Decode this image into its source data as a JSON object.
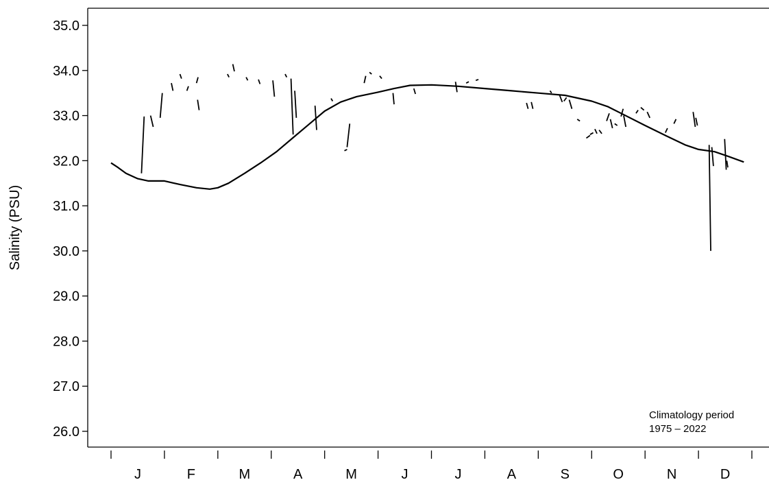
{
  "chart_data": {
    "type": "line",
    "title": "",
    "xlabel": "",
    "ylabel": "Salinity (PSU)",
    "x_domain": [
      0,
      12
    ],
    "ylim": [
      25.6,
      35.3
    ],
    "y_ticks": [
      26.0,
      27.0,
      28.0,
      29.0,
      30.0,
      31.0,
      32.0,
      33.0,
      34.0,
      35.0
    ],
    "y_tick_labels": [
      "26.0",
      "27.0",
      "28.0",
      "29.0",
      "30.0",
      "31.0",
      "32.0",
      "33.0",
      "34.0",
      "35.0"
    ],
    "x_tick_labels": [
      "J",
      "F",
      "M",
      "A",
      "M",
      "J",
      "J",
      "A",
      "S",
      "O",
      "N",
      "D"
    ],
    "grid": false,
    "annotation": [
      "Climatology period",
      "1975 – 2022"
    ],
    "series": [
      {
        "role": "climatology",
        "x": [
          0.0,
          0.13,
          0.28,
          0.5,
          0.7,
          1.0,
          1.3,
          1.6,
          1.85,
          2.0,
          2.2,
          2.5,
          2.8,
          3.1,
          3.4,
          3.7,
          4.0,
          4.3,
          4.6,
          5.0,
          5.3,
          5.6,
          6.0,
          6.5,
          7.0,
          7.5,
          8.0,
          8.5,
          9.0,
          9.3,
          9.6,
          10.0,
          10.4,
          10.75,
          11.0,
          11.3,
          11.55,
          11.85
        ],
        "y": [
          31.95,
          31.85,
          31.72,
          31.6,
          31.55,
          31.55,
          31.47,
          31.4,
          31.37,
          31.4,
          31.5,
          31.72,
          31.95,
          32.2,
          32.5,
          32.8,
          33.1,
          33.3,
          33.42,
          33.52,
          33.6,
          33.67,
          33.68,
          33.65,
          33.6,
          33.55,
          33.5,
          33.45,
          33.32,
          33.2,
          33.02,
          32.78,
          32.55,
          32.35,
          32.25,
          32.2,
          32.1,
          31.97
        ]
      },
      {
        "role": "observations",
        "segments": [
          [
            0.57,
            31.72,
            0.62,
            32.98
          ],
          [
            0.74,
            33.0,
            0.79,
            32.75
          ],
          [
            0.92,
            32.95,
            0.96,
            33.5
          ],
          [
            1.13,
            33.72,
            1.16,
            33.55
          ],
          [
            1.29,
            33.92,
            1.32,
            33.82
          ],
          [
            1.42,
            33.55,
            1.45,
            33.65
          ],
          [
            1.6,
            33.72,
            1.63,
            33.85
          ],
          [
            1.62,
            33.35,
            1.65,
            33.12
          ],
          [
            2.18,
            33.92,
            2.21,
            33.85
          ],
          [
            2.28,
            34.14,
            2.31,
            33.98
          ],
          [
            2.53,
            33.85,
            2.56,
            33.78
          ],
          [
            2.76,
            33.8,
            2.79,
            33.7
          ],
          [
            3.03,
            33.78,
            3.06,
            33.42
          ],
          [
            3.26,
            33.92,
            3.29,
            33.85
          ],
          [
            3.37,
            33.82,
            3.41,
            32.58
          ],
          [
            3.44,
            33.55,
            3.47,
            32.95
          ],
          [
            3.82,
            33.22,
            3.85,
            32.68
          ],
          [
            4.12,
            33.38,
            4.15,
            33.32
          ],
          [
            4.37,
            32.22,
            4.42,
            32.25
          ],
          [
            4.42,
            32.3,
            4.47,
            32.82
          ],
          [
            4.74,
            33.72,
            4.77,
            33.88
          ],
          [
            4.84,
            33.96,
            4.88,
            33.92
          ],
          [
            5.03,
            33.88,
            5.07,
            33.82
          ],
          [
            5.28,
            33.5,
            5.3,
            33.25
          ],
          [
            5.67,
            33.6,
            5.7,
            33.48
          ],
          [
            6.45,
            33.75,
            6.48,
            33.52
          ],
          [
            6.65,
            33.72,
            6.7,
            33.75
          ],
          [
            6.83,
            33.78,
            6.88,
            33.8
          ],
          [
            7.78,
            33.28,
            7.81,
            33.15
          ],
          [
            7.87,
            33.3,
            7.9,
            33.15
          ],
          [
            8.22,
            33.55,
            8.25,
            33.5
          ],
          [
            8.4,
            33.45,
            8.45,
            33.3
          ],
          [
            8.48,
            33.32,
            8.53,
            33.4
          ],
          [
            8.58,
            33.35,
            8.63,
            33.15
          ],
          [
            8.73,
            32.92,
            8.78,
            32.88
          ],
          [
            8.9,
            32.5,
            8.97,
            32.56
          ],
          [
            8.97,
            32.58,
            9.03,
            32.62
          ],
          [
            9.06,
            32.7,
            9.1,
            32.6
          ],
          [
            9.14,
            32.68,
            9.19,
            32.6
          ],
          [
            9.28,
            32.88,
            9.33,
            33.05
          ],
          [
            9.35,
            32.92,
            9.39,
            32.72
          ],
          [
            9.43,
            32.82,
            9.48,
            32.78
          ],
          [
            9.55,
            32.98,
            9.59,
            33.15
          ],
          [
            9.6,
            33.0,
            9.64,
            32.75
          ],
          [
            9.83,
            33.05,
            9.87,
            33.12
          ],
          [
            9.92,
            33.18,
            9.98,
            33.12
          ],
          [
            10.04,
            33.08,
            10.09,
            32.95
          ],
          [
            10.38,
            32.62,
            10.42,
            32.72
          ],
          [
            10.54,
            32.82,
            10.58,
            32.92
          ],
          [
            10.9,
            33.08,
            10.94,
            32.75
          ],
          [
            10.95,
            32.95,
            10.98,
            32.78
          ],
          [
            11.2,
            32.35,
            11.23,
            30.0
          ],
          [
            11.25,
            32.3,
            11.28,
            31.88
          ],
          [
            11.49,
            32.48,
            11.52,
            31.8
          ],
          [
            11.53,
            32.0,
            11.55,
            31.85
          ]
        ]
      }
    ]
  }
}
